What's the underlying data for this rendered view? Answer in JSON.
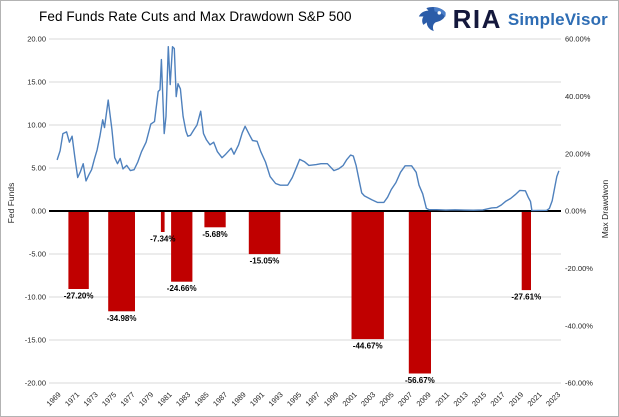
{
  "header": {
    "title": "Fed Funds Rate Cuts and Max Drawdown S&P 500",
    "logo": {
      "brand": "RIA",
      "product": "SimpleVisor",
      "icon": "eagle-icon"
    }
  },
  "colors": {
    "line_blue": "#4f81bd",
    "bar_red": "#c00000",
    "grid_gray": "#d9d9d9",
    "zero_axis": "#000000",
    "tick_text": "#262626",
    "label_text": "#000000",
    "ria_navy": "#14183c",
    "simplevisor_blue": "#2e6db4",
    "eagle_blue": "#2b5ca8"
  },
  "chart_data": {
    "type": "combo",
    "title": "Fed Funds Rate Cuts and Max Drawdown S&P 500",
    "grid": "horizontal",
    "legend": "none",
    "xlim": [
      1968.1,
      2023.45
    ],
    "x_ticks": [
      "1969",
      "1971",
      "1973",
      "1975",
      "1977",
      "1979",
      "1981",
      "1983",
      "1985",
      "1987",
      "1989",
      "1991",
      "1993",
      "1995",
      "1997",
      "1999",
      "2001",
      "2003",
      "2005",
      "2007",
      "2009",
      "2011",
      "2013",
      "2015",
      "2017",
      "2019",
      "2021",
      "2023"
    ],
    "left_axis": {
      "label": "Fed Funds",
      "lim": [
        -20,
        20
      ],
      "ticks": [
        "20.00",
        "15.00",
        "10.00",
        "5.00",
        "0.00",
        "-5.00",
        "-10.00",
        "-15.00",
        "-20.00"
      ]
    },
    "right_axis": {
      "label": "Max Drawdwon",
      "lim": [
        -60,
        60
      ],
      "ticks": [
        "60.00%",
        "40.00%",
        "20.00%",
        "0.00%",
        "-20.00%",
        "-40.00%",
        "-60.00%"
      ]
    },
    "series": [
      {
        "name": "Max Drawdown S&P 500",
        "type": "bar",
        "axis": "right",
        "color": "#c00000",
        "bars": [
          {
            "start": 1970.2,
            "end": 1972.4,
            "value": -27.2,
            "label": "-27.20%"
          },
          {
            "start": 1974.5,
            "end": 1977.4,
            "value": -34.98,
            "label": "-34.98%"
          },
          {
            "start": 1980.2,
            "end": 1980.6,
            "value": -7.34,
            "label": "-7.34%"
          },
          {
            "start": 1981.3,
            "end": 1983.6,
            "value": -24.66,
            "label": "-24.66%"
          },
          {
            "start": 1984.9,
            "end": 1987.2,
            "value": -5.68,
            "label": "-5.68%"
          },
          {
            "start": 1989.7,
            "end": 1993.1,
            "value": -15.05,
            "label": "-15.05%"
          },
          {
            "start": 2000.8,
            "end": 2004.3,
            "value": -44.67,
            "label": "-44.67%"
          },
          {
            "start": 2007.0,
            "end": 2009.4,
            "value": -56.67,
            "label": "-56.67%"
          },
          {
            "start": 2019.2,
            "end": 2020.2,
            "value": -27.61,
            "label": "-27.61%"
          }
        ]
      },
      {
        "name": "Fed Funds",
        "type": "line",
        "axis": "left",
        "color": "#4f81bd",
        "points": [
          [
            1969.0,
            6.0
          ],
          [
            1969.3,
            7.0
          ],
          [
            1969.6,
            9.0
          ],
          [
            1970.0,
            9.2
          ],
          [
            1970.3,
            8.0
          ],
          [
            1970.6,
            8.7
          ],
          [
            1970.9,
            6.2
          ],
          [
            1971.2,
            3.9
          ],
          [
            1971.5,
            4.6
          ],
          [
            1971.8,
            5.5
          ],
          [
            1972.1,
            3.5
          ],
          [
            1972.4,
            4.2
          ],
          [
            1972.7,
            4.8
          ],
          [
            1973.0,
            6.0
          ],
          [
            1973.3,
            7.1
          ],
          [
            1973.6,
            8.7
          ],
          [
            1973.9,
            10.6
          ],
          [
            1974.1,
            9.7
          ],
          [
            1974.5,
            12.9
          ],
          [
            1974.9,
            9.5
          ],
          [
            1975.2,
            6.2
          ],
          [
            1975.5,
            5.5
          ],
          [
            1975.8,
            6.1
          ],
          [
            1976.1,
            4.9
          ],
          [
            1976.5,
            5.3
          ],
          [
            1976.9,
            4.7
          ],
          [
            1977.3,
            4.8
          ],
          [
            1977.7,
            5.7
          ],
          [
            1978.1,
            6.9
          ],
          [
            1978.6,
            8.0
          ],
          [
            1979.1,
            10.1
          ],
          [
            1979.5,
            10.4
          ],
          [
            1979.9,
            13.9
          ],
          [
            1980.1,
            14.1
          ],
          [
            1980.25,
            17.6
          ],
          [
            1980.55,
            9.0
          ],
          [
            1980.75,
            11.0
          ],
          [
            1981.0,
            19.1
          ],
          [
            1981.2,
            14.7
          ],
          [
            1981.45,
            19.1
          ],
          [
            1981.65,
            18.9
          ],
          [
            1981.85,
            13.3
          ],
          [
            1982.05,
            14.8
          ],
          [
            1982.3,
            14.2
          ],
          [
            1982.6,
            11.0
          ],
          [
            1982.9,
            9.3
          ],
          [
            1983.1,
            8.7
          ],
          [
            1983.4,
            8.8
          ],
          [
            1983.8,
            9.5
          ],
          [
            1984.1,
            10.0
          ],
          [
            1984.5,
            11.6
          ],
          [
            1984.8,
            9.0
          ],
          [
            1985.1,
            8.3
          ],
          [
            1985.5,
            7.7
          ],
          [
            1985.9,
            8.0
          ],
          [
            1986.3,
            6.9
          ],
          [
            1986.8,
            6.2
          ],
          [
            1987.2,
            6.6
          ],
          [
            1987.8,
            7.3
          ],
          [
            1988.1,
            6.6
          ],
          [
            1988.6,
            7.7
          ],
          [
            1989.0,
            9.1
          ],
          [
            1989.3,
            9.85
          ],
          [
            1989.8,
            8.8
          ],
          [
            1990.1,
            8.2
          ],
          [
            1990.6,
            8.1
          ],
          [
            1991.0,
            6.9
          ],
          [
            1991.5,
            5.7
          ],
          [
            1992.0,
            4.0
          ],
          [
            1992.6,
            3.2
          ],
          [
            1993.1,
            3.0
          ],
          [
            1993.9,
            3.0
          ],
          [
            1994.4,
            3.9
          ],
          [
            1994.9,
            5.2
          ],
          [
            1995.2,
            6.0
          ],
          [
            1995.7,
            5.75
          ],
          [
            1996.2,
            5.3
          ],
          [
            1997.0,
            5.4
          ],
          [
            1997.5,
            5.5
          ],
          [
            1998.2,
            5.5
          ],
          [
            1998.9,
            4.7
          ],
          [
            1999.4,
            4.9
          ],
          [
            1999.9,
            5.3
          ],
          [
            2000.3,
            6.0
          ],
          [
            2000.7,
            6.5
          ],
          [
            2001.0,
            6.4
          ],
          [
            2001.3,
            5.3
          ],
          [
            2001.6,
            3.7
          ],
          [
            2001.9,
            2.1
          ],
          [
            2002.2,
            1.75
          ],
          [
            2003.0,
            1.3
          ],
          [
            2003.6,
            1.0
          ],
          [
            2004.3,
            1.0
          ],
          [
            2004.7,
            1.6
          ],
          [
            2005.1,
            2.5
          ],
          [
            2005.6,
            3.3
          ],
          [
            2006.1,
            4.5
          ],
          [
            2006.6,
            5.25
          ],
          [
            2007.3,
            5.25
          ],
          [
            2007.8,
            4.5
          ],
          [
            2008.1,
            3.0
          ],
          [
            2008.5,
            2.0
          ],
          [
            2008.9,
            0.3
          ],
          [
            2009.2,
            0.15
          ],
          [
            2010.0,
            0.15
          ],
          [
            2011.0,
            0.1
          ],
          [
            2012.0,
            0.14
          ],
          [
            2013.0,
            0.11
          ],
          [
            2014.0,
            0.09
          ],
          [
            2015.0,
            0.13
          ],
          [
            2015.95,
            0.36
          ],
          [
            2016.5,
            0.4
          ],
          [
            2017.0,
            0.7
          ],
          [
            2017.5,
            1.15
          ],
          [
            2018.0,
            1.45
          ],
          [
            2018.5,
            1.9
          ],
          [
            2019.0,
            2.4
          ],
          [
            2019.6,
            2.35
          ],
          [
            2019.9,
            1.6
          ],
          [
            2020.15,
            1.1
          ],
          [
            2020.3,
            0.05
          ],
          [
            2021.0,
            0.07
          ],
          [
            2021.9,
            0.08
          ],
          [
            2022.2,
            0.3
          ],
          [
            2022.5,
            1.2
          ],
          [
            2022.75,
            2.6
          ],
          [
            2023.0,
            4.0
          ],
          [
            2023.2,
            4.6
          ]
        ]
      }
    ]
  }
}
